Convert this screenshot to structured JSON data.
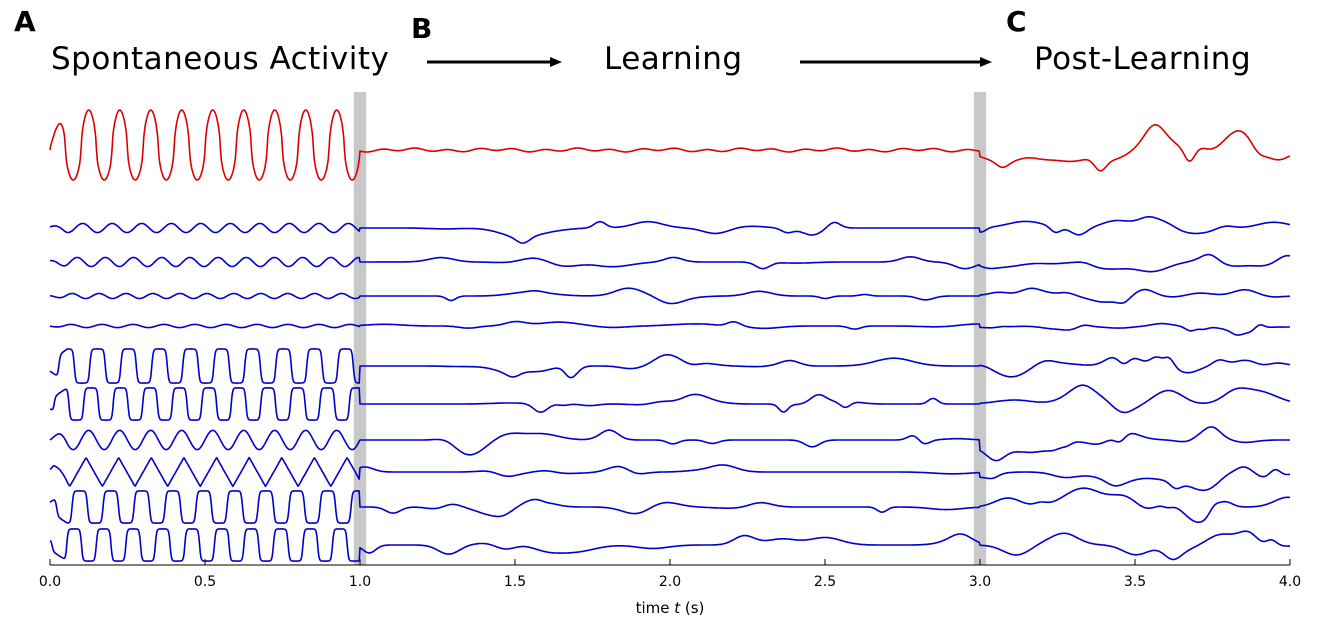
{
  "panels": {
    "a": {
      "letter": "A",
      "label": "Spontaneous Activity"
    },
    "b": {
      "letter": "B",
      "label": "Learning"
    },
    "c": {
      "letter": "C",
      "label": "Post-Learning"
    }
  },
  "chart_data": {
    "type": "line",
    "xlabel_parts": [
      "time ",
      "t",
      " (s)"
    ],
    "xlim": [
      0.0,
      4.0
    ],
    "xticks": [
      "0.0",
      "0.5",
      "1.0",
      "1.5",
      "2.0",
      "2.5",
      "3.0",
      "3.5",
      "4.0"
    ],
    "grid": false,
    "shaded_regions": [
      {
        "x_start": 0.98,
        "x_end": 1.02,
        "color": "#c8c8c8"
      },
      {
        "x_start": 2.98,
        "x_end": 3.02,
        "color": "#c8c8c8"
      }
    ],
    "phases": [
      {
        "name": "Spontaneous Activity",
        "x_start": 0.0,
        "x_end": 1.0
      },
      {
        "name": "Learning",
        "x_start": 1.0,
        "x_end": 3.0
      },
      {
        "name": "Post-Learning",
        "x_start": 3.0,
        "x_end": 4.0
      }
    ],
    "colors": {
      "readout": "#dd0000",
      "units": "#0000cc"
    },
    "series": [
      {
        "role": "readout",
        "spontaneous": {
          "freq_hz": 10.0,
          "amp": 1.0,
          "shape": "spiky"
        }
      },
      {
        "role": "unit",
        "spontaneous": {
          "freq_hz": 10.5,
          "amp": 0.35,
          "shape": "sine"
        }
      },
      {
        "role": "unit",
        "spontaneous": {
          "freq_hz": 11.0,
          "amp": 0.35,
          "shape": "sine"
        }
      },
      {
        "role": "unit",
        "spontaneous": {
          "freq_hz": 11.5,
          "amp": 0.25,
          "shape": "sine"
        }
      },
      {
        "role": "unit",
        "spontaneous": {
          "freq_hz": 10.0,
          "amp": 0.2,
          "shape": "sine"
        }
      },
      {
        "role": "unit",
        "spontaneous": {
          "freq_hz": 10.0,
          "amp": 0.95,
          "shape": "square"
        }
      },
      {
        "role": "unit",
        "spontaneous": {
          "freq_hz": 10.5,
          "amp": 0.95,
          "shape": "square"
        }
      },
      {
        "role": "unit",
        "spontaneous": {
          "freq_hz": 10.0,
          "amp": 0.6,
          "shape": "sine"
        }
      },
      {
        "role": "unit",
        "spontaneous": {
          "freq_hz": 9.5,
          "amp": 0.85,
          "shape": "tri"
        }
      },
      {
        "role": "unit",
        "spontaneous": {
          "freq_hz": 10.0,
          "amp": 0.95,
          "shape": "square"
        }
      },
      {
        "role": "unit",
        "spontaneous": {
          "freq_hz": 10.5,
          "amp": 0.95,
          "shape": "square"
        }
      }
    ]
  }
}
